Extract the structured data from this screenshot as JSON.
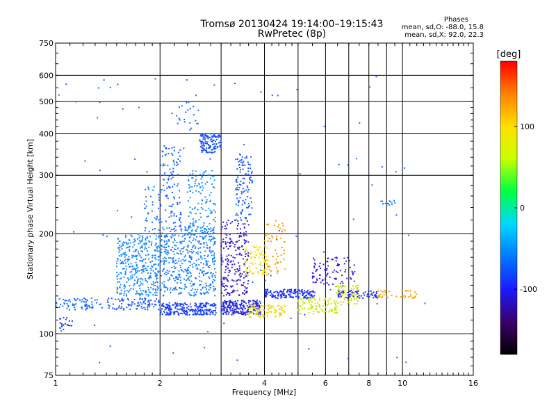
{
  "header": {
    "title_line1": "Tromsø 20130424 19:14:00–19:15:43",
    "title_line2": "RwPretec (8p)"
  },
  "phase_box": {
    "heading": "Phases",
    "line1": "mean, sd,O: -88.0, 15.8",
    "line2": "mean, sd,X:  92.0, 22.3"
  },
  "colorbar": {
    "label": "[deg]",
    "ticks": [
      "100",
      "0",
      "-100"
    ],
    "tick_values": [
      100,
      0,
      -100
    ],
    "range": [
      -180,
      180
    ],
    "colors": [
      "#000000",
      "#3b006b",
      "#1a1aff",
      "#0078ff",
      "#00d8ff",
      "#00ff40",
      "#c8ff00",
      "#ffe000",
      "#ff8000",
      "#ff0000"
    ]
  },
  "chart_data": {
    "type": "scatter",
    "xlabel": "Frequency [MHz]",
    "ylabel": "Stationary phase Virtual Height [km]",
    "xscale": "log",
    "yscale": "log",
    "xlim": [
      1,
      16
    ],
    "ylim": [
      75,
      750
    ],
    "x_ticks": [
      1,
      2,
      4,
      6,
      8,
      10,
      16
    ],
    "x_tick_labels": [
      "1",
      "2",
      "4",
      "6",
      "8",
      "10",
      "16"
    ],
    "y_ticks": [
      75,
      100,
      200,
      300,
      400,
      500,
      600,
      750
    ],
    "y_tick_labels": [
      "75",
      "100",
      "200",
      "300",
      "400",
      "500",
      "600",
      "750"
    ],
    "grid": true,
    "clusters": [
      {
        "x": [
          1.0,
          1.35
        ],
        "y": [
          118,
          128
        ],
        "n": 70,
        "color": "#1a6aff"
      },
      {
        "x": [
          1.02,
          1.12
        ],
        "y": [
          103,
          112
        ],
        "n": 20,
        "color": "#1a3cff"
      },
      {
        "x": [
          1.4,
          2.0
        ],
        "y": [
          118,
          128
        ],
        "n": 90,
        "color": "#1a55ff"
      },
      {
        "x": [
          1.5,
          2.0
        ],
        "y": [
          130,
          200
        ],
        "n": 380,
        "color": "#1a8cff"
      },
      {
        "x": [
          1.8,
          2.0
        ],
        "y": [
          200,
          280
        ],
        "n": 40,
        "color": "#1a6aff"
      },
      {
        "x": [
          2.0,
          2.9
        ],
        "y": [
          114,
          124
        ],
        "n": 240,
        "color": "#1a40ff"
      },
      {
        "x": [
          2.0,
          2.9
        ],
        "y": [
          130,
          210
        ],
        "n": 480,
        "color": "#1a80ff"
      },
      {
        "x": [
          2.0,
          2.3
        ],
        "y": [
          210,
          370
        ],
        "n": 110,
        "color": "#1a60ff"
      },
      {
        "x": [
          2.4,
          2.9
        ],
        "y": [
          200,
          310
        ],
        "n": 130,
        "color": "#1a90ff"
      },
      {
        "x": [
          2.6,
          3.0
        ],
        "y": [
          350,
          400
        ],
        "n": 120,
        "color": "#1a50ff"
      },
      {
        "x": [
          2.2,
          2.6
        ],
        "y": [
          420,
          500
        ],
        "n": 20,
        "color": "#1a60ff"
      },
      {
        "x": [
          3.0,
          3.9
        ],
        "y": [
          114,
          126
        ],
        "n": 230,
        "color": "#2a2adf"
      },
      {
        "x": [
          3.0,
          3.6
        ],
        "y": [
          130,
          220
        ],
        "n": 230,
        "color": "#3a1ac8"
      },
      {
        "x": [
          3.3,
          3.7
        ],
        "y": [
          220,
          350
        ],
        "n": 110,
        "color": "#1a5aff"
      },
      {
        "x": [
          3.5,
          4.1
        ],
        "y": [
          150,
          185
        ],
        "n": 90,
        "color": "#f2e000"
      },
      {
        "x": [
          3.6,
          4.6
        ],
        "y": [
          112,
          122
        ],
        "n": 90,
        "color": "#e6d800"
      },
      {
        "x": [
          4.0,
          5.6
        ],
        "y": [
          128,
          136
        ],
        "n": 150,
        "color": "#1a2cff"
      },
      {
        "x": [
          4.0,
          4.6
        ],
        "y": [
          150,
          220
        ],
        "n": 60,
        "color": "#f0a000"
      },
      {
        "x": [
          5.0,
          6.5
        ],
        "y": [
          115,
          128
        ],
        "n": 90,
        "color": "#c8e600"
      },
      {
        "x": [
          5.5,
          7.3
        ],
        "y": [
          140,
          170
        ],
        "n": 90,
        "color": "#3a1adf"
      },
      {
        "x": [
          6.3,
          7.5
        ],
        "y": [
          122,
          140
        ],
        "n": 80,
        "color": "#d8e000"
      },
      {
        "x": [
          6.5,
          8.5
        ],
        "y": [
          128,
          135
        ],
        "n": 60,
        "color": "#1a2aff"
      },
      {
        "x": [
          8.5,
          11.0
        ],
        "y": [
          128,
          135
        ],
        "n": 40,
        "color": "#f0a000"
      },
      {
        "x": [
          8.6,
          9.6
        ],
        "y": [
          244,
          252
        ],
        "n": 15,
        "color": "#1a80ff"
      },
      {
        "x": [
          1.0,
          12.0
        ],
        "y": [
          80,
          600
        ],
        "n": 90,
        "color": "#1a60ff"
      }
    ]
  }
}
